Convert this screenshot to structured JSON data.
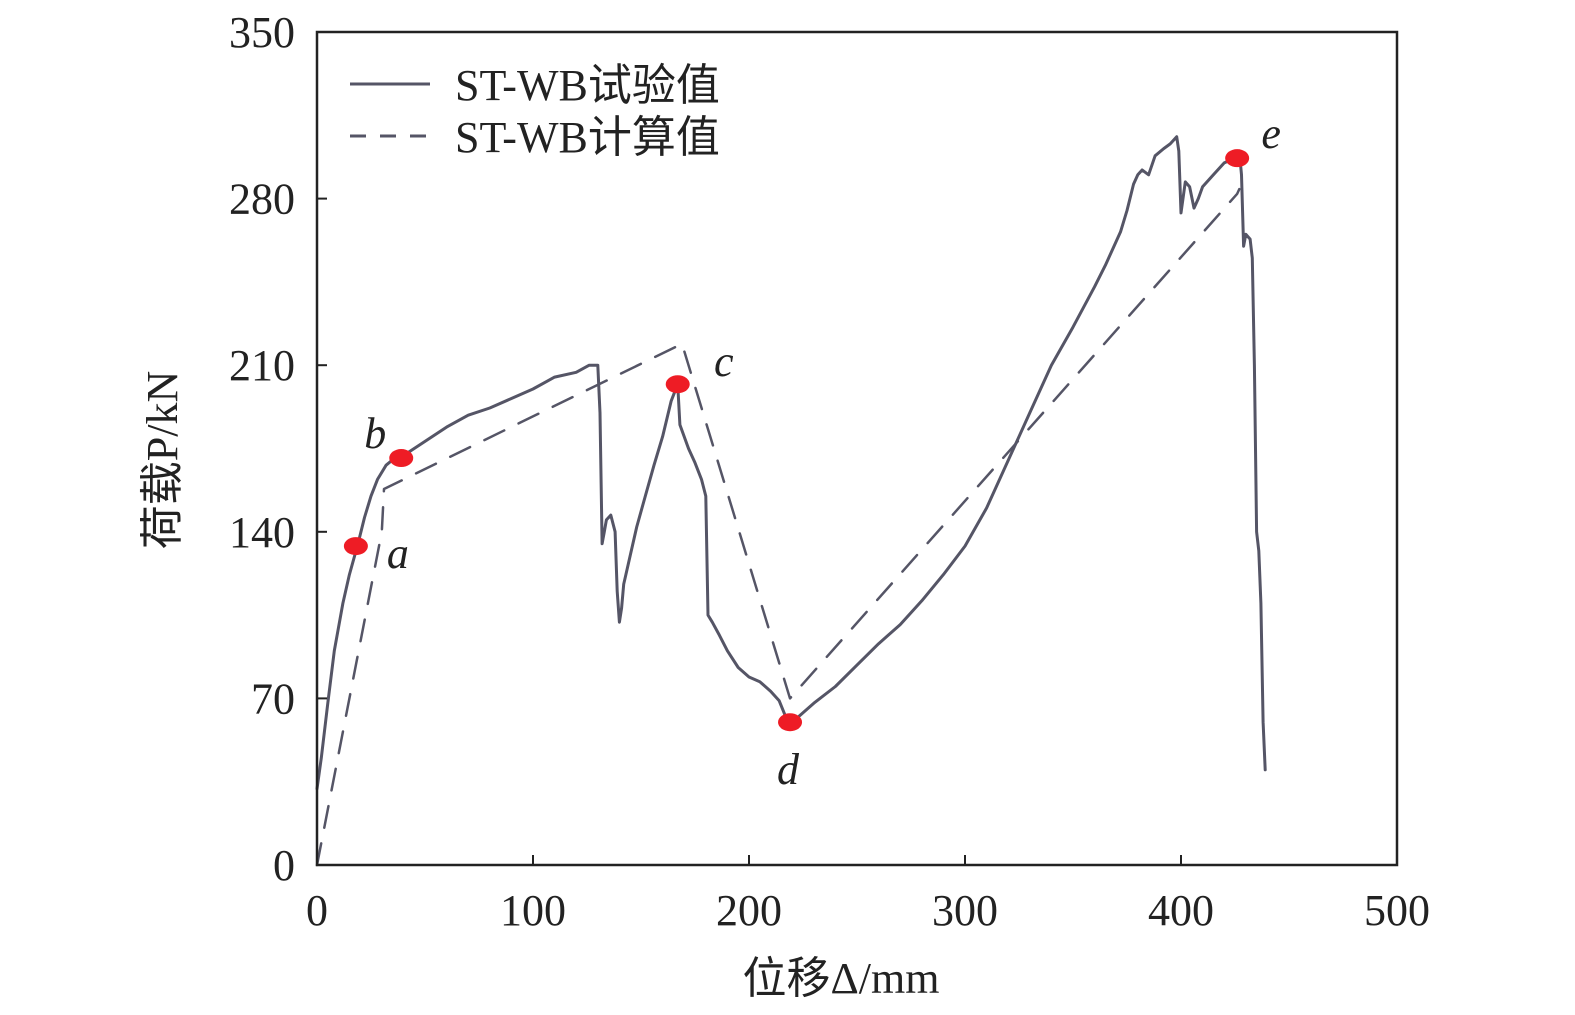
{
  "chart_data": {
    "type": "line",
    "xlabel": "位移Δ/mm",
    "ylabel": "荷载P/kN",
    "xlim": [
      0,
      500
    ],
    "ylim": [
      0,
      350
    ],
    "xticks": [
      0,
      100,
      200,
      300,
      400,
      500
    ],
    "yticks": [
      0,
      70,
      140,
      210,
      280,
      350
    ],
    "grid": false,
    "legend_position": "top-left",
    "series": [
      {
        "name": "ST-WB试验值",
        "style": "solid",
        "color": "#555566",
        "x": [
          0,
          2,
          5,
          8,
          12,
          15,
          19,
          22,
          25,
          28,
          32,
          36,
          40,
          45,
          50,
          60,
          70,
          80,
          90,
          100,
          110,
          120,
          126,
          130,
          131,
          132,
          133,
          134,
          136,
          138,
          139,
          140,
          141,
          142,
          143,
          145,
          148,
          152,
          156,
          160,
          164,
          167,
          168,
          170,
          172,
          175,
          178,
          180,
          181,
          183,
          186,
          190,
          195,
          200,
          205,
          210,
          214,
          218,
          220,
          225,
          230,
          240,
          250,
          260,
          270,
          280,
          290,
          300,
          310,
          320,
          330,
          340,
          350,
          360,
          365,
          370,
          372,
          375,
          378,
          380,
          382,
          385,
          388,
          392,
          395,
          398,
          399,
          400,
          402,
          404,
          406,
          408,
          410,
          415,
          420,
          425,
          427,
          428,
          429,
          430,
          432,
          433,
          434,
          435,
          436,
          437,
          438,
          439
        ],
        "y": [
          32,
          45,
          68,
          90,
          110,
          122,
          135,
          146,
          155,
          162,
          168,
          171,
          172,
          175,
          178,
          184,
          189,
          192,
          196,
          200,
          205,
          207,
          210,
          210,
          190,
          135,
          140,
          145,
          147,
          140,
          115,
          102,
          108,
          118,
          122,
          130,
          142,
          155,
          168,
          180,
          195,
          202,
          185,
          180,
          175,
          169,
          162,
          155,
          105,
          102,
          97,
          90,
          83,
          79,
          77,
          73,
          69,
          60,
          60,
          64,
          68,
          75,
          84,
          93,
          101,
          111,
          122,
          134,
          150,
          170,
          190,
          210,
          226,
          243,
          252,
          262,
          266,
          275,
          286,
          290,
          292,
          290,
          298,
          301,
          303,
          306,
          300,
          274,
          287,
          285,
          276,
          280,
          285,
          290,
          295,
          297,
          300,
          290,
          260,
          265,
          263,
          255,
          210,
          140,
          132,
          110,
          60,
          40
        ]
      },
      {
        "name": "ST-WB计算值",
        "style": "dashed",
        "color": "#555566",
        "x": [
          0,
          30,
          31,
          169,
          219,
          426,
          427
        ],
        "y": [
          0,
          140,
          158,
          219,
          70,
          282,
          284
        ]
      }
    ],
    "points": [
      {
        "label": "a",
        "x": 18,
        "y": 134,
        "color": "#ee1c25"
      },
      {
        "label": "b",
        "x": 39,
        "y": 171,
        "color": "#ee1c25"
      },
      {
        "label": "c",
        "x": 167,
        "y": 202,
        "color": "#ee1c25"
      },
      {
        "label": "d",
        "x": 219,
        "y": 60,
        "color": "#ee1c25"
      },
      {
        "label": "e",
        "x": 426,
        "y": 297,
        "color": "#ee1c25"
      }
    ]
  }
}
